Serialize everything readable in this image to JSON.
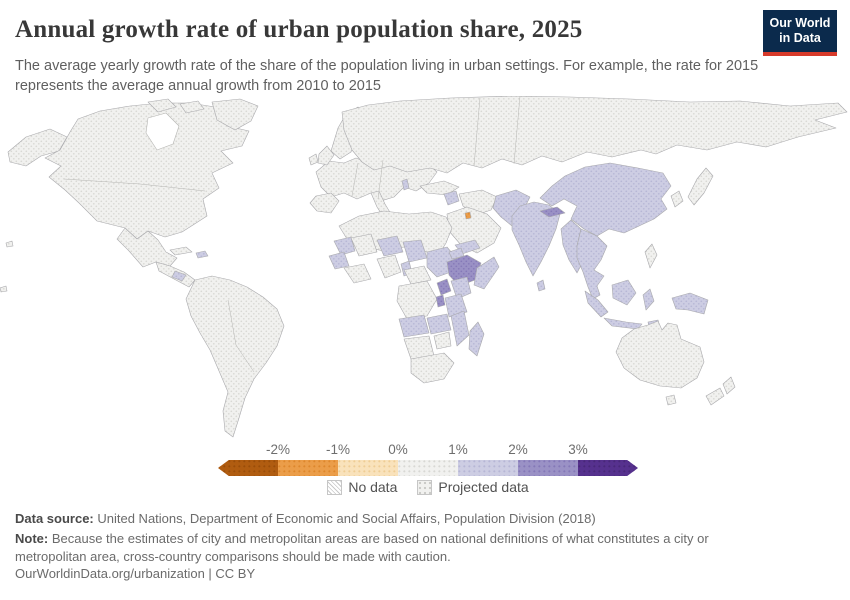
{
  "header": {
    "title": "Annual growth rate of urban population share, 2025",
    "subtitle": "The average yearly growth rate of the share of the population living in urban settings. For example, the rate for 2015 represents the average annual growth from 2010 to 2015",
    "logo": {
      "line1": "Our World",
      "line2": "in Data",
      "bg_color": "#0b2a4c",
      "accent_color": "#d73a2a"
    }
  },
  "legend": {
    "tick_labels": [
      "-2%",
      "-1%",
      "0%",
      "1%",
      "2%",
      "3%"
    ],
    "bin_order": [
      "b_lt_m2",
      "b_m2_m1",
      "b_m1_0",
      "b_0_1",
      "b_1_2",
      "b_2_3",
      "b_gt_3"
    ],
    "no_data_label": "No data",
    "projected_label": "Projected data"
  },
  "footer": {
    "source_label": "Data source:",
    "source_text": " United Nations, Department of Economic and Social Affairs, Population Division (2018)",
    "note_label": "Note:",
    "note_text": " Because the estimates of city and metropolitan areas are based on national definitions of what constitutes a city or metropolitan area, cross-country comparisons should be made with caution.",
    "citation": "OurWorldinData.org/urbanization | CC BY"
  },
  "chart_data": {
    "type": "choropleth_map",
    "title": "Annual growth rate of urban population share",
    "year": 2025,
    "unit": "% average annual growth",
    "projection_note": "All shown values are projected data (dotted pattern)",
    "legend_tick_labels": [
      "-2%",
      "-1%",
      "0%",
      "1%",
      "2%",
      "3%"
    ],
    "value_bins": {
      "b_lt_m2": {
        "label": "less than -2%",
        "color": "#b05c10",
        "dot": "#9a4d09"
      },
      "b_m2_m1": {
        "label": "-2% to -1%",
        "color": "#eb9d49",
        "dot": "#dd872c"
      },
      "b_m1_0": {
        "label": "-1% to 0%",
        "color": "#f9e2bb",
        "dot": "#eecd95"
      },
      "b_0_1": {
        "label": "0% to 1%",
        "color": "#f1f1ef",
        "dot": "#d8d8d4"
      },
      "b_1_2": {
        "label": "1% to 2%",
        "color": "#cdcde3",
        "dot": "#b6b6d5"
      },
      "b_2_3": {
        "label": "2% to 3%",
        "color": "#9a91c5",
        "dot": "#8478b7"
      },
      "b_gt_3": {
        "label": "more than 3%",
        "color": "#56318e",
        "dot": "#482879"
      }
    },
    "regions": {
      "alaska": "b_0_1",
      "canada_us": "b_0_1",
      "arctic_islands_1": "b_0_1",
      "arctic_islands_2": "b_0_1",
      "greenland": "b_0_1",
      "mexico": "b_0_1",
      "cuba": "b_0_1",
      "haiti": "b_1_2",
      "central_america": "b_0_1",
      "honduras": "b_1_2",
      "south_america": "b_0_1",
      "europe": "b_0_1",
      "iberia": "b_0_1",
      "italy": "b_0_1",
      "uk": "b_0_1",
      "ireland": "b_0_1",
      "scandinavia": "b_0_1",
      "albania": "b_1_2",
      "russia_central_asia": "b_0_1",
      "turkey": "b_0_1",
      "syria": "b_1_2",
      "iran": "b_0_1",
      "kuwait": "b_m2_m1",
      "arabia": "b_0_1",
      "yemen": "b_1_2",
      "afghanistan_pakistan": "b_1_2",
      "india": "b_1_2",
      "nepal": "b_2_3",
      "sri_lanka": "b_1_2",
      "china": "b_1_2",
      "korea": "b_0_1",
      "japan": "b_0_1",
      "myanmar_bangladesh": "b_1_2",
      "indochina": "b_1_2",
      "sumatra": "b_1_2",
      "java": "b_1_2",
      "borneo": "b_1_2",
      "sulawesi": "b_1_2",
      "lesser_sunda": "b_1_2",
      "philippines": "b_0_1",
      "new_guinea": "b_1_2",
      "australia": "b_0_1",
      "tasmania": "b_0_1",
      "new_zealand_north": "b_0_1",
      "new_zealand_south": "b_0_1",
      "north_africa": "b_0_1",
      "mauritania": "b_1_2",
      "mali": "b_0_1",
      "niger": "b_1_2",
      "chad": "b_1_2",
      "sudan": "b_1_2",
      "senegal_guinea": "b_1_2",
      "west_africa_coast": "b_0_1",
      "nigeria": "b_0_1",
      "cameroon": "b_1_2",
      "eritrea": "b_1_2",
      "ethiopia": "b_2_3",
      "somalia": "b_1_2",
      "central_african_republic": "b_0_1",
      "dr_congo": "b_0_1",
      "uganda": "b_2_3",
      "kenya": "b_1_2",
      "rwanda_burundi": "b_2_3",
      "tanzania": "b_1_2",
      "angola": "b_1_2",
      "zambia": "b_1_2",
      "mozambique": "b_1_2",
      "zimbabwe": "b_0_1",
      "namibia_botswana": "b_0_1",
      "south_africa": "b_0_1",
      "madagascar": "b_1_2",
      "hawaii_1": "b_0_1",
      "hawaii_2": "b_0_1"
    }
  }
}
